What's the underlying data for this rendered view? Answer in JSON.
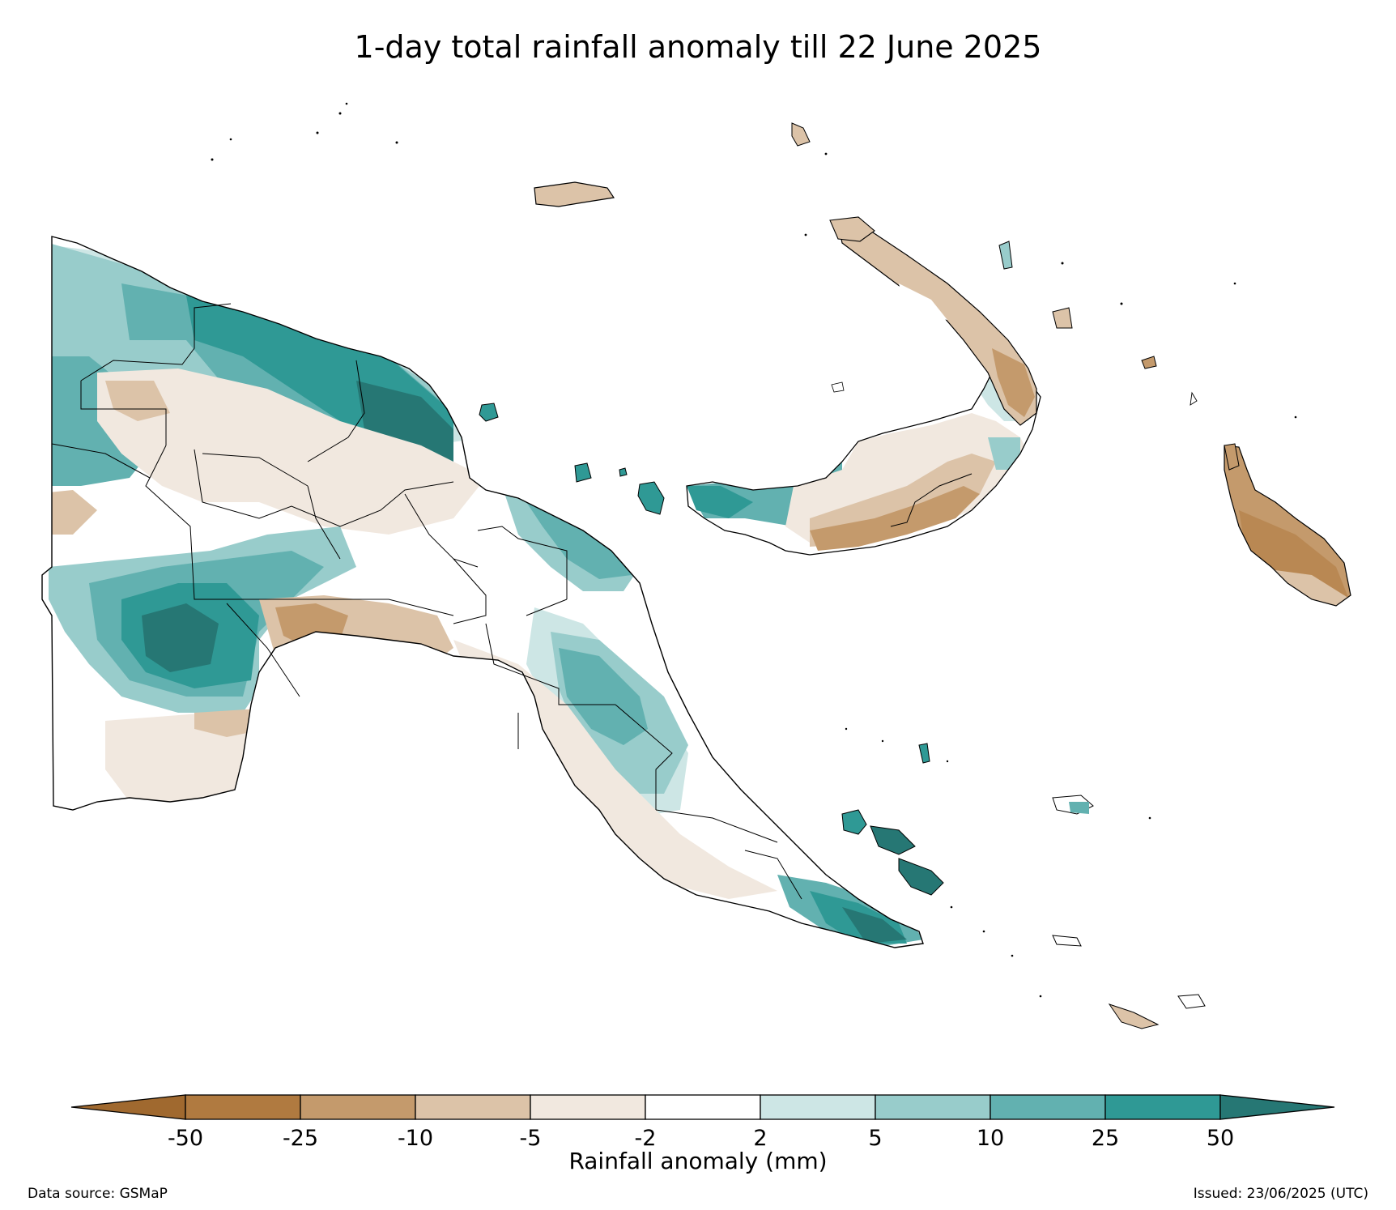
{
  "title": "1-day total rainfall anomaly till 22 June 2025",
  "legend": {
    "label": "Rainfall anomaly (mm)",
    "ticks": [
      "-50",
      "-25",
      "-10",
      "-5",
      "-2",
      "2",
      "5",
      "10",
      "25",
      "50"
    ],
    "bins": [
      {
        "range": "< -50",
        "color": "#a0692f"
      },
      {
        "range": "-50 to -25",
        "color": "#b07a40"
      },
      {
        "range": "-25 to -10",
        "color": "#c49a6c"
      },
      {
        "range": "-10 to -5",
        "color": "#dcc3a8"
      },
      {
        "range": "-5 to -2",
        "color": "#f1e8df"
      },
      {
        "range": "-2 to 2",
        "color": "#ffffff"
      },
      {
        "range": "2 to 5",
        "color": "#cde6e5"
      },
      {
        "range": "5 to 10",
        "color": "#98cccb"
      },
      {
        "range": "10 to 25",
        "color": "#62b1b0"
      },
      {
        "range": "25 to 50",
        "color": "#2f9995"
      },
      {
        "range": "> 50",
        "color": "#267774"
      }
    ]
  },
  "footer": {
    "source": "Data source: GSMaP",
    "issued": "Issued: 23/06/2025 (UTC)"
  }
}
